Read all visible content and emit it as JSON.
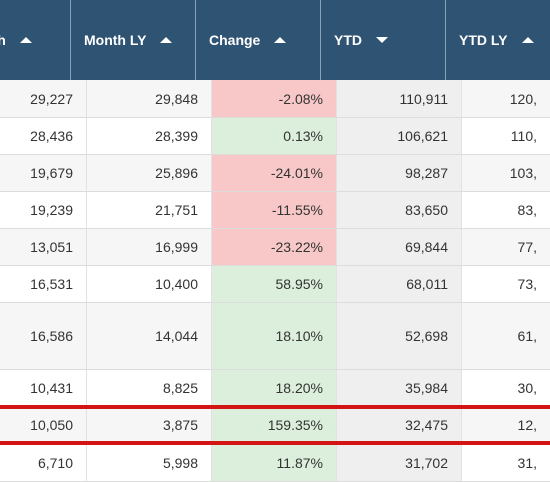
{
  "header": {
    "columns": [
      {
        "label": "nth",
        "sort": "up"
      },
      {
        "label": "Month LY",
        "sort": "up"
      },
      {
        "label": "Change",
        "sort": "up"
      },
      {
        "label": "YTD",
        "sort": "down"
      },
      {
        "label": "YTD LY",
        "sort": "up"
      }
    ]
  },
  "rows": [
    {
      "month": "29,227",
      "month_ly": "29,848",
      "change": "-2.08%",
      "ytd": "110,911",
      "ytd_ly": "120,"
    },
    {
      "month": "28,436",
      "month_ly": "28,399",
      "change": "0.13%",
      "ytd": "106,621",
      "ytd_ly": "110,"
    },
    {
      "month": "19,679",
      "month_ly": "25,896",
      "change": "-24.01%",
      "ytd": "98,287",
      "ytd_ly": "103,"
    },
    {
      "month": "19,239",
      "month_ly": "21,751",
      "change": "-11.55%",
      "ytd": "83,650",
      "ytd_ly": "83,"
    },
    {
      "month": "13,051",
      "month_ly": "16,999",
      "change": "-23.22%",
      "ytd": "69,844",
      "ytd_ly": "77,"
    },
    {
      "month": "16,531",
      "month_ly": "10,400",
      "change": "58.95%",
      "ytd": "68,011",
      "ytd_ly": "73,"
    },
    {
      "month": "16,586",
      "month_ly": "14,044",
      "change": "18.10%",
      "ytd": "52,698",
      "ytd_ly": "61,"
    },
    {
      "month": "10,431",
      "month_ly": "8,825",
      "change": "18.20%",
      "ytd": "35,984",
      "ytd_ly": "30,"
    },
    {
      "month": "10,050",
      "month_ly": "3,875",
      "change": "159.35%",
      "ytd": "32,475",
      "ytd_ly": "12,"
    },
    {
      "month": "6,710",
      "month_ly": "5,998",
      "change": "11.87%",
      "ytd": "31,702",
      "ytd_ly": "31,"
    }
  ],
  "colors": {
    "header_bg": "#2f5373",
    "negative_change": "#f8c8c8",
    "positive_change": "#dcefdc",
    "highlight_border": "#d21414"
  }
}
